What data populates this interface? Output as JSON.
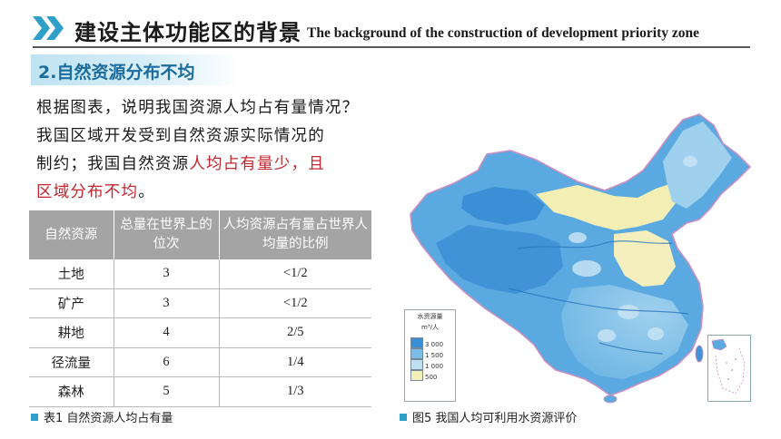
{
  "header": {
    "title_cn": "建设主体功能区的背景",
    "title_en": "The background of the construction of development priority zone"
  },
  "section": {
    "title": "2.自然资源分布不均"
  },
  "paragraph": {
    "line1": "根据图表，说明我国资源人均占有量情况？",
    "line2": "我国区域开发受到自然资源实际情况的",
    "line3_a": "制约；我国自然资源",
    "line3_b": "人均占有量少，且",
    "line4_a": "区域分布不均",
    "line4_b": "。"
  },
  "table": {
    "headers": [
      "自然资源",
      "总量在世界上的位次",
      "人均资源占有量占世界人均量的比例"
    ],
    "rows": [
      [
        "土地",
        "3",
        "<1/2"
      ],
      [
        "矿产",
        "3",
        "<1/2"
      ],
      [
        "耕地",
        "4",
        "2/5"
      ],
      [
        "径流量",
        "6",
        "1/4"
      ],
      [
        "森林",
        "5",
        "1/3"
      ]
    ]
  },
  "captions": {
    "table": "表1 自然资源人均占有量",
    "map": "图5 我国人均可利用水资源评价"
  },
  "legend": {
    "title": "水资源量",
    "unit": "m³/人",
    "levels": [
      "3 000",
      "1 500",
      "1 000",
      "500"
    ],
    "colors": [
      "#3a8fd6",
      "#7bbde8",
      "#bcdff2",
      "#f3efb8"
    ]
  },
  "colors": {
    "accent": "#2f9fc8",
    "section_text": "#1b6c9c",
    "highlight_red": "#c2262e",
    "table_header": "#a4a4a4"
  }
}
